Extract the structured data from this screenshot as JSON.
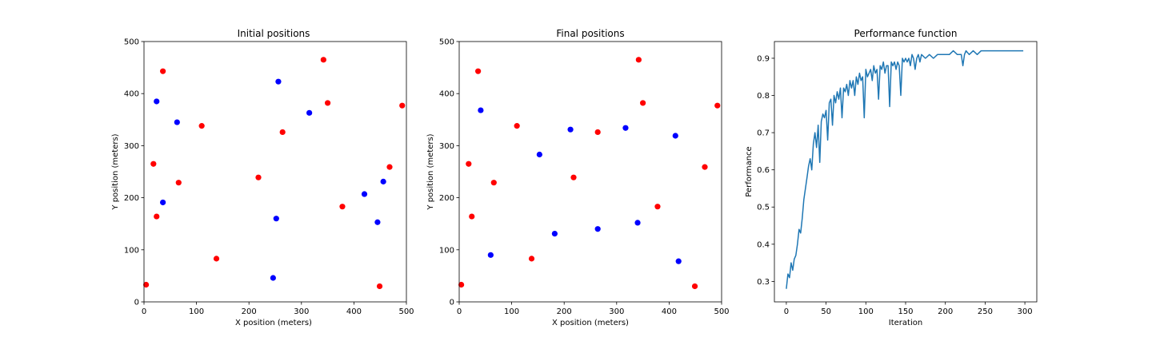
{
  "colors": {
    "red": "#ff0000",
    "blue": "#0000ff",
    "line": "#1f77b4"
  },
  "chart_data": [
    {
      "type": "scatter",
      "title": "Initial positions",
      "xlabel": "X position (meters)",
      "ylabel": "Y position (meters)",
      "xlim": [
        0,
        500
      ],
      "ylim": [
        0,
        500
      ],
      "xticks": [
        0,
        100,
        200,
        300,
        400,
        500
      ],
      "yticks": [
        0,
        100,
        200,
        300,
        400,
        500
      ],
      "grid": false,
      "series": [
        {
          "color": "red",
          "points": [
            [
              36,
              443
            ],
            [
              342,
              465
            ],
            [
              350,
              382
            ],
            [
              492,
              377
            ],
            [
              110,
              338
            ],
            [
              264,
              326
            ],
            [
              18,
              265
            ],
            [
              468,
              259
            ],
            [
              66,
              229
            ],
            [
              218,
              239
            ],
            [
              24,
              164
            ],
            [
              378,
              183
            ],
            [
              138,
              83
            ],
            [
              4,
              33
            ],
            [
              449,
              30
            ]
          ]
        },
        {
          "color": "blue",
          "points": [
            [
              256,
              423
            ],
            [
              24,
              385
            ],
            [
              63,
              345
            ],
            [
              315,
              363
            ],
            [
              36,
              191
            ],
            [
              420,
              207
            ],
            [
              456,
              231
            ],
            [
              252,
              160
            ],
            [
              445,
              153
            ],
            [
              246,
              46
            ]
          ]
        }
      ]
    },
    {
      "type": "scatter",
      "title": "Final positions",
      "xlabel": "X position (meters)",
      "ylabel": "Y position (meters)",
      "xlim": [
        0,
        500
      ],
      "ylim": [
        0,
        500
      ],
      "xticks": [
        0,
        100,
        200,
        300,
        400,
        500
      ],
      "yticks": [
        0,
        100,
        200,
        300,
        400,
        500
      ],
      "grid": false,
      "series": [
        {
          "color": "red",
          "points": [
            [
              36,
              443
            ],
            [
              342,
              465
            ],
            [
              350,
              382
            ],
            [
              492,
              377
            ],
            [
              110,
              338
            ],
            [
              264,
              326
            ],
            [
              18,
              265
            ],
            [
              468,
              259
            ],
            [
              66,
              229
            ],
            [
              218,
              239
            ],
            [
              24,
              164
            ],
            [
              378,
              183
            ],
            [
              138,
              83
            ],
            [
              4,
              33
            ],
            [
              449,
              30
            ]
          ]
        },
        {
          "color": "blue",
          "points": [
            [
              41,
              368
            ],
            [
              212,
              331
            ],
            [
              317,
              334
            ],
            [
              412,
              319
            ],
            [
              153,
              283
            ],
            [
              182,
              131
            ],
            [
              264,
              140
            ],
            [
              340,
              152
            ],
            [
              60,
              90
            ],
            [
              418,
              78
            ]
          ]
        }
      ]
    },
    {
      "type": "line",
      "title": "Performance function",
      "xlabel": "Iteration",
      "ylabel": "Performance",
      "xlim": [
        -15,
        315
      ],
      "ylim": [
        0.245,
        0.945
      ],
      "xticks": [
        0,
        50,
        100,
        150,
        200,
        250,
        300
      ],
      "yticks": [
        0.3,
        0.4,
        0.5,
        0.6,
        0.7,
        0.8,
        0.9
      ],
      "grid": false,
      "series": [
        {
          "color": "line",
          "x": [
            0,
            2,
            4,
            6,
            8,
            10,
            12,
            14,
            16,
            18,
            20,
            22,
            24,
            26,
            28,
            30,
            32,
            34,
            36,
            38,
            40,
            42,
            44,
            46,
            48,
            50,
            52,
            54,
            56,
            58,
            60,
            62,
            64,
            66,
            68,
            70,
            72,
            74,
            76,
            78,
            80,
            82,
            84,
            86,
            88,
            90,
            92,
            94,
            96,
            98,
            100,
            102,
            104,
            106,
            108,
            110,
            112,
            114,
            116,
            118,
            120,
            122,
            124,
            126,
            128,
            130,
            132,
            134,
            136,
            138,
            140,
            142,
            144,
            146,
            148,
            150,
            152,
            154,
            156,
            158,
            160,
            162,
            164,
            166,
            168,
            170,
            175,
            180,
            185,
            190,
            195,
            200,
            205,
            210,
            215,
            220,
            222,
            224,
            226,
            230,
            235,
            240,
            245,
            250,
            255,
            260,
            265,
            270,
            275,
            280,
            285,
            290,
            295,
            298
          ],
          "y": [
            0.28,
            0.32,
            0.31,
            0.35,
            0.33,
            0.36,
            0.37,
            0.4,
            0.44,
            0.43,
            0.47,
            0.52,
            0.55,
            0.58,
            0.61,
            0.63,
            0.6,
            0.67,
            0.7,
            0.66,
            0.72,
            0.62,
            0.73,
            0.75,
            0.74,
            0.76,
            0.68,
            0.78,
            0.79,
            0.72,
            0.8,
            0.78,
            0.81,
            0.79,
            0.82,
            0.74,
            0.82,
            0.81,
            0.83,
            0.8,
            0.84,
            0.82,
            0.84,
            0.8,
            0.85,
            0.83,
            0.86,
            0.84,
            0.85,
            0.74,
            0.87,
            0.85,
            0.86,
            0.87,
            0.84,
            0.88,
            0.86,
            0.87,
            0.79,
            0.88,
            0.87,
            0.89,
            0.86,
            0.88,
            0.88,
            0.77,
            0.89,
            0.88,
            0.89,
            0.87,
            0.89,
            0.88,
            0.8,
            0.9,
            0.89,
            0.9,
            0.89,
            0.9,
            0.88,
            0.91,
            0.9,
            0.87,
            0.9,
            0.91,
            0.89,
            0.91,
            0.9,
            0.91,
            0.9,
            0.91,
            0.91,
            0.91,
            0.91,
            0.92,
            0.91,
            0.91,
            0.88,
            0.91,
            0.92,
            0.91,
            0.92,
            0.91,
            0.92,
            0.92,
            0.92,
            0.92,
            0.92,
            0.92,
            0.92,
            0.92,
            0.92,
            0.92,
            0.92,
            0.92
          ]
        }
      ]
    }
  ]
}
